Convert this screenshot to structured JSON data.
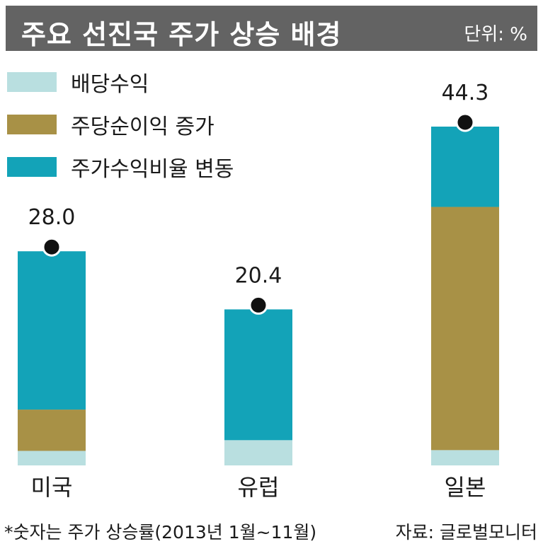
{
  "header": {
    "title": "주요 선진국 주가 상승 배경",
    "unit": "단위: %"
  },
  "legend": [
    {
      "label": "배당수익",
      "color": "#b9dfe0"
    },
    {
      "label": "주당순이익 증가",
      "color": "#a89146"
    },
    {
      "label": "주가수익비율 변동",
      "color": "#13a3b8"
    }
  ],
  "chart_data": {
    "type": "bar",
    "stacked": true,
    "categories": [
      "미국",
      "유럽",
      "일본"
    ],
    "series": [
      {
        "name": "배당수익",
        "values": [
          1.9,
          3.3,
          2.0
        ]
      },
      {
        "name": "주당순이익 증가",
        "values": [
          5.4,
          0,
          31.8
        ]
      },
      {
        "name": "주가수익비율 변동",
        "values": [
          20.7,
          17.1,
          10.5
        ]
      }
    ],
    "totals": [
      28.0,
      20.4,
      44.3
    ],
    "total_labels": [
      "28.0",
      "20.4",
      "44.3"
    ],
    "title": "주요 선진국 주가 상승 배경",
    "unit": "단위: %",
    "xlabel": "",
    "ylabel": "",
    "ylim": [
      0,
      44.3
    ],
    "grid": false,
    "legend_position": "top-left"
  },
  "footer": {
    "note": "*숫자는 주가 상승률(2013년 1월~11월)",
    "source": "자료: 글로벌모니터"
  }
}
